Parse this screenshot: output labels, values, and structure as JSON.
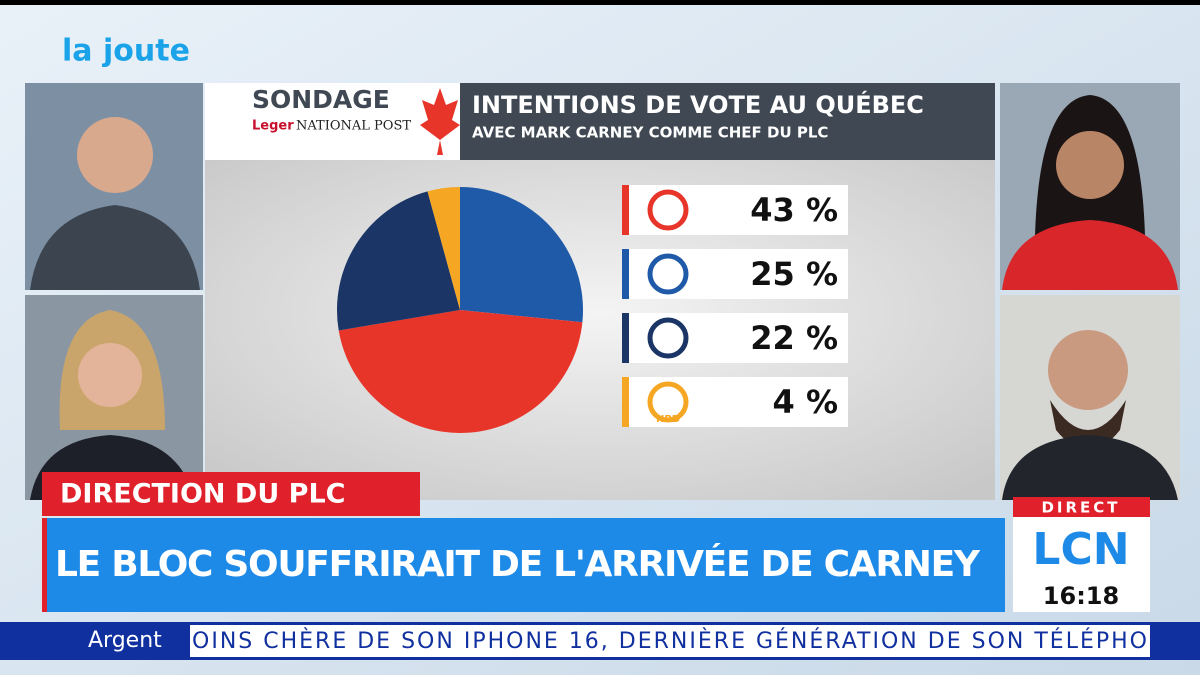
{
  "show": {
    "logo": "la joute",
    "direct": "DIRECT",
    "channel": "LCN",
    "time": "16:18"
  },
  "poll": {
    "label": "SONDAGE",
    "pollster": "Leger",
    "partner": "NATIONAL POST"
  },
  "chart_data": {
    "type": "pie",
    "title": "INTENTIONS DE VOTE AU QUÉBEC",
    "subtitle": "AVEC MARK CARNEY COMME CHEF DU PLC",
    "categories": [
      null,
      null,
      null,
      "NPD"
    ],
    "values": [
      43,
      25,
      22,
      4
    ],
    "value_labels": [
      "43 %",
      "25 %",
      "22 %",
      "4 %"
    ],
    "colors": [
      "#e8352a",
      "#1f5aa8",
      "#1a3566",
      "#f5a623"
    ]
  },
  "lower_third": {
    "tag": "DIRECTION DU PLC",
    "headline": "LE BLOC SOUFFRIRAIT DE L'ARRIVÉE DE CARNEY"
  },
  "ticker": {
    "section": "Argent",
    "text": "OINS CHÈRE DE SON IPHONE 16, DERNIÈRE GÉNÉRATION DE SON TÉLÉPHO"
  }
}
